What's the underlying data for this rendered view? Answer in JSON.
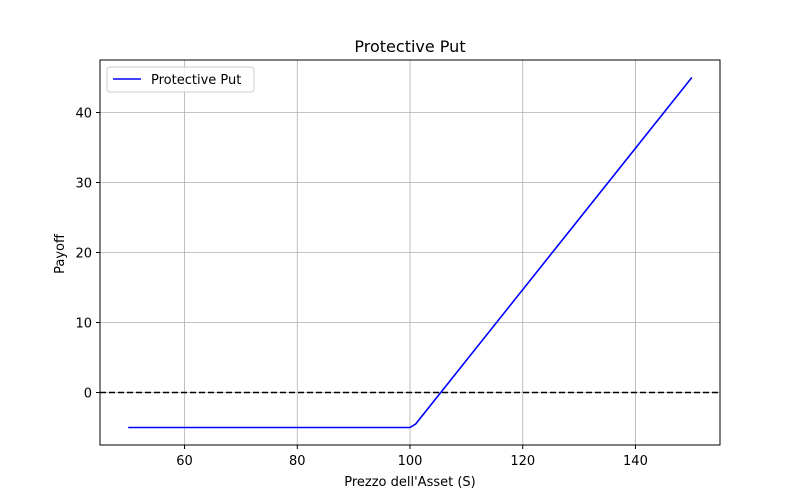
{
  "chart_data": {
    "type": "line",
    "title": "Protective Put",
    "xlabel": "Prezzo dell'Asset (S)",
    "ylabel": "Payoff",
    "xlim": [
      45,
      155
    ],
    "ylim": [
      -7.5,
      47.5
    ],
    "xticks": [
      60,
      80,
      100,
      120,
      140
    ],
    "yticks": [
      0,
      10,
      20,
      30,
      40
    ],
    "grid": true,
    "legend_position": "top-left",
    "series": [
      {
        "name": "Protective Put",
        "color": "#0000ff",
        "x": [
          50,
          100,
          101,
          150
        ],
        "y": [
          -5,
          -5,
          -4.5,
          45
        ]
      }
    ],
    "reference_line": {
      "y": 0,
      "style": "dashed",
      "color": "#000000"
    }
  }
}
